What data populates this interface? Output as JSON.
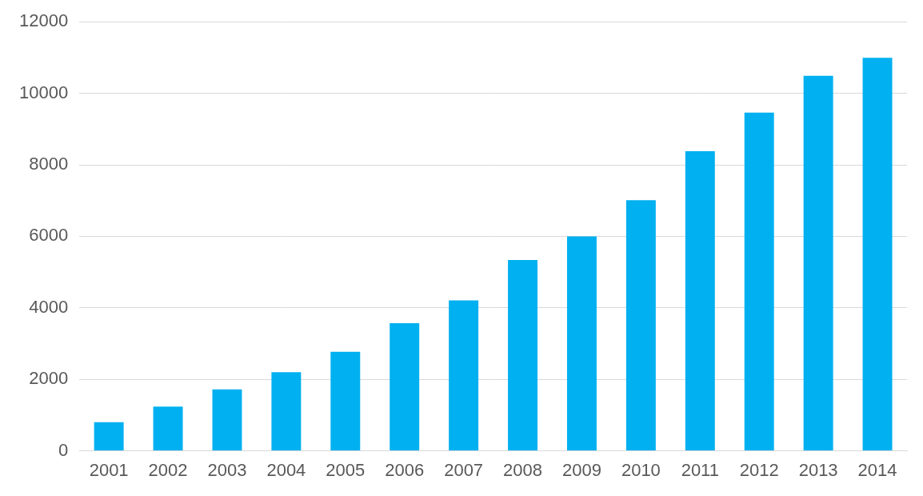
{
  "chart_data": {
    "type": "bar",
    "categories": [
      "2001",
      "2002",
      "2003",
      "2004",
      "2005",
      "2006",
      "2007",
      "2008",
      "2009",
      "2010",
      "2011",
      "2012",
      "2013",
      "2014"
    ],
    "values": [
      800,
      1240,
      1720,
      2200,
      2770,
      3570,
      4210,
      5340,
      6000,
      7010,
      8380,
      9460,
      10490,
      10990
    ],
    "color": "#00b0f0",
    "ylim": [
      0,
      12000
    ],
    "yticks": [
      0,
      2000,
      4000,
      6000,
      8000,
      10000,
      12000
    ],
    "grid": true
  }
}
